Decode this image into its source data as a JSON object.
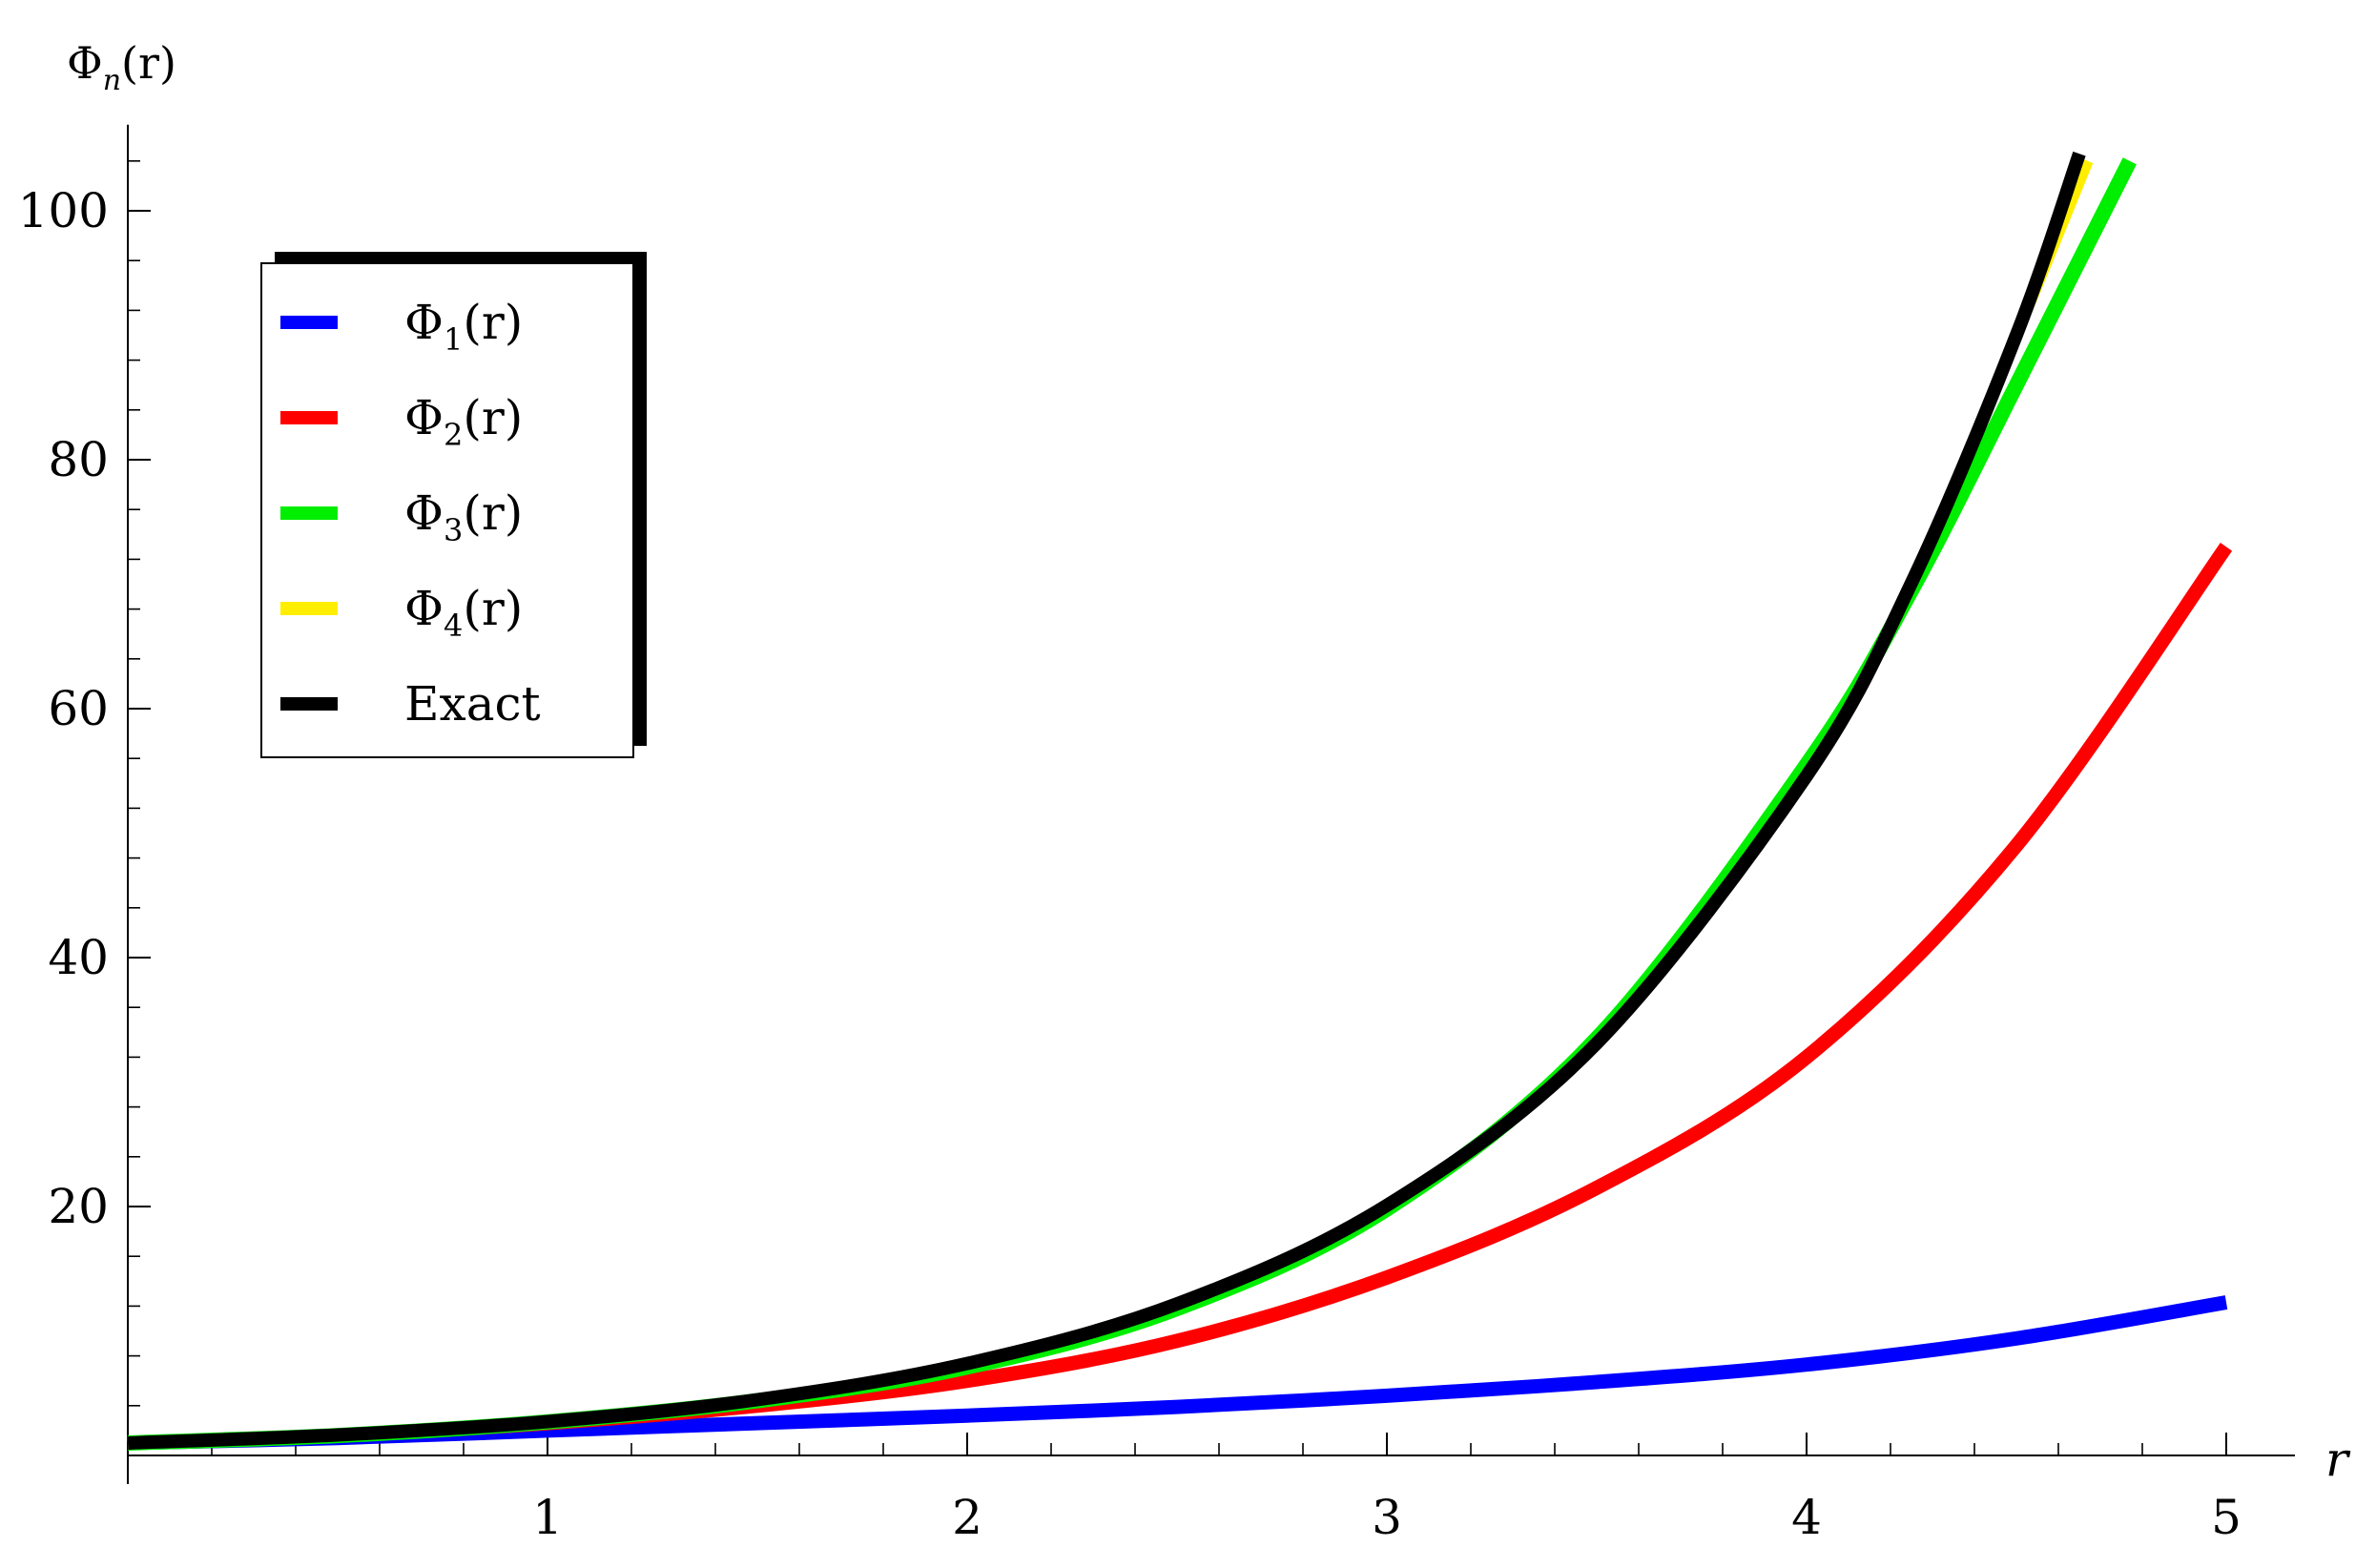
{
  "chart_data": {
    "type": "line",
    "ylabel_base": "Φ",
    "ylabel_sub": "n",
    "ylabel_suffix": "(r)",
    "xlabel": "r",
    "xlim": [
      0,
      5.1
    ],
    "ylim": [
      0,
      106
    ],
    "x_ticks": [
      {
        "value": 1,
        "label": "1"
      },
      {
        "value": 2,
        "label": "2"
      },
      {
        "value": 3,
        "label": "3"
      },
      {
        "value": 4,
        "label": "4"
      },
      {
        "value": 5,
        "label": "5"
      }
    ],
    "x_minor_step": 0.2,
    "y_ticks": [
      {
        "value": 20,
        "label": "20"
      },
      {
        "value": 40,
        "label": "40"
      },
      {
        "value": 60,
        "label": "60"
      },
      {
        "value": 80,
        "label": "80"
      },
      {
        "value": 100,
        "label": "100"
      }
    ],
    "y_minor_step": 4,
    "legend_position": "top-left",
    "series": [
      {
        "name": "Φ₁(r)",
        "base": "Φ",
        "sub": "1",
        "suffix": "(r)",
        "color": "#0000ff",
        "x": [
          0,
          0.5,
          1,
          1.5,
          2,
          2.5,
          3,
          3.5,
          4,
          4.5,
          5
        ],
        "y": [
          1.0,
          1.4,
          2.0,
          2.6,
          3.2,
          3.9,
          4.8,
          5.9,
          7.3,
          9.4,
          12.3
        ]
      },
      {
        "name": "Φ₂(r)",
        "base": "Φ",
        "sub": "2",
        "suffix": "(r)",
        "color": "#ff0000",
        "x": [
          0,
          0.5,
          1,
          1.5,
          2,
          2.5,
          3,
          3.5,
          4,
          4.5,
          5
        ],
        "y": [
          1.0,
          1.6,
          2.6,
          4.0,
          6.0,
          9.2,
          14.3,
          21.5,
          32.0,
          49.0,
          73.0
        ]
      },
      {
        "name": "Φ₃(r)",
        "base": "Φ",
        "sub": "3",
        "suffix": "(r)",
        "color": "#00ee00",
        "x": [
          0,
          0.5,
          1,
          1.5,
          2,
          2.5,
          3,
          3.5,
          4,
          4.25,
          4.5,
          4.65,
          4.77
        ],
        "y": [
          1.0,
          1.6,
          2.7,
          4.4,
          7.1,
          11.8,
          19.8,
          33.5,
          55.5,
          69.5,
          86.0,
          96.0,
          104.0
        ]
      },
      {
        "name": "Φ₄(r)",
        "base": "Φ",
        "sub": "4",
        "suffix": "(r)",
        "color": "#ffee00",
        "x": [
          0,
          0.5,
          1,
          1.5,
          2,
          2.5,
          3,
          3.5,
          4,
          4.25,
          4.5,
          4.67
        ],
        "y": [
          1.0,
          1.6,
          2.7,
          4.5,
          7.4,
          12.2,
          20.1,
          33.1,
          54.6,
          70.1,
          90.0,
          104.0
        ]
      },
      {
        "name": "Exact",
        "base": "Exact",
        "sub": "",
        "suffix": "",
        "color": "#000000",
        "x": [
          0,
          0.5,
          1,
          1.5,
          2,
          2.5,
          3,
          3.5,
          4,
          4.25,
          4.5,
          4.65
        ],
        "y": [
          1.0,
          1.65,
          2.72,
          4.48,
          7.39,
          12.18,
          20.09,
          33.12,
          54.6,
          70.11,
          90.02,
          104.58
        ]
      }
    ]
  }
}
